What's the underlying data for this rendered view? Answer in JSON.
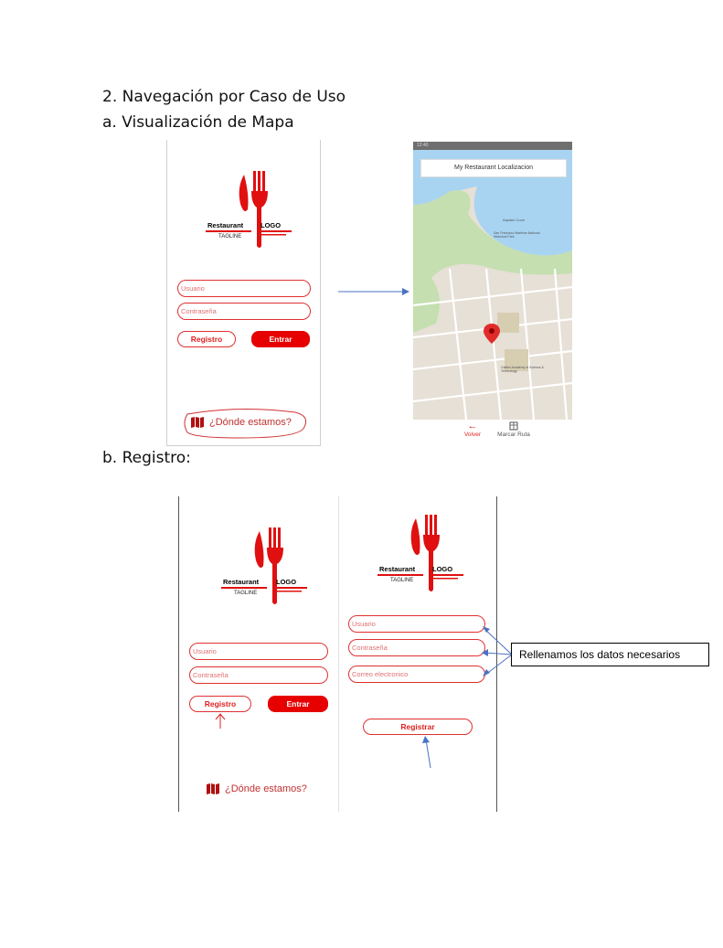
{
  "headings": {
    "section": "2.  Navegación por Caso de Uso",
    "sub_a": "a.  Visualización de Mapa",
    "sub_b": "b.  Registro:"
  },
  "logo": {
    "brand": "Restaurant",
    "logo_word": "LOGO",
    "tagline": "TAGLINE"
  },
  "login": {
    "user_placeholder": "Usuario",
    "password_placeholder": "Contraseña",
    "register_button": "Registro",
    "enter_button": "Entrar",
    "where_link": "¿Dónde estamos?"
  },
  "map_screen": {
    "status_time": "12:40",
    "title": "My Restaurant Localizacion",
    "labels": [
      "Aquatic Cove",
      "San Francisco Maritime National Historical Park",
      "Galileo Academy of Science & Technology"
    ],
    "nav": {
      "back": "Volver",
      "route": "Marcar Ruta"
    }
  },
  "register_screen": {
    "user_placeholder": "Usuario",
    "password_placeholder": "Contraseña",
    "email_placeholder": "Correo electronico",
    "submit_button": "Registrar"
  },
  "callout": "Rellenamos  los datos necesarios",
  "colors": {
    "accent_red": "#e60000",
    "field_border": "#e03030",
    "arrow_blue": "#4a72c4",
    "map_water": "#a8d4f2",
    "map_park": "#c5dfb0",
    "map_land": "#e6e0d6"
  }
}
